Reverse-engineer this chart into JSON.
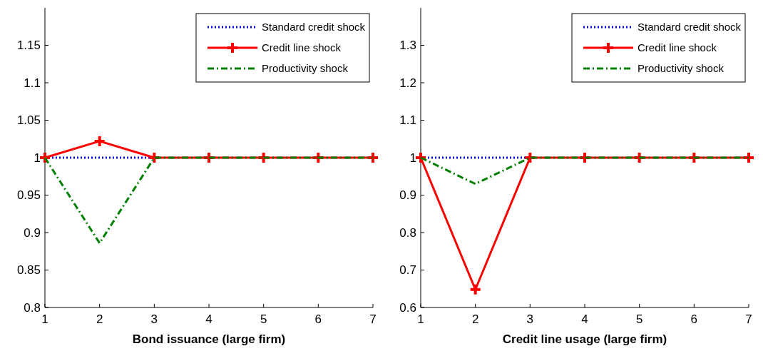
{
  "chart_data": [
    {
      "type": "line",
      "xlabel": "Bond issuance (large firm)",
      "x": [
        1,
        2,
        3,
        4,
        5,
        6,
        7
      ],
      "xlim": [
        1,
        7
      ],
      "xticks": [
        1,
        2,
        3,
        4,
        5,
        6,
        7
      ],
      "ylim": [
        0.8,
        1.2
      ],
      "yticks": [
        0.8,
        0.85,
        0.9,
        0.95,
        1,
        1.05,
        1.1,
        1.15
      ],
      "legend": "top right",
      "grid": false,
      "series": [
        {
          "name": "Standard credit shock",
          "color": "#0000ff",
          "line_style": "dotted",
          "marker": "none",
          "values": [
            1,
            1,
            1,
            null,
            null,
            null,
            null
          ]
        },
        {
          "name": "Credit line shock",
          "color": "#ff0000",
          "line_style": "solid",
          "marker": "cross",
          "values": [
            1,
            1.022,
            1,
            1,
            1,
            1,
            1
          ]
        },
        {
          "name": "Productivity shock",
          "color": "#008000",
          "line_style": "dashed",
          "marker": "none",
          "values": [
            1,
            0.886,
            1,
            1,
            1,
            1,
            1
          ]
        }
      ]
    },
    {
      "type": "line",
      "xlabel": "Credit line usage (large firm)",
      "x": [
        1,
        2,
        3,
        4,
        5,
        6,
        7
      ],
      "xlim": [
        1,
        7
      ],
      "xticks": [
        1,
        2,
        3,
        4,
        5,
        6,
        7
      ],
      "ylim": [
        0.6,
        1.4
      ],
      "yticks": [
        0.6,
        0.7,
        0.8,
        0.9,
        1,
        1.1,
        1.2,
        1.3
      ],
      "legend": "top right",
      "grid": false,
      "series": [
        {
          "name": "Standard credit shock",
          "color": "#0000ff",
          "line_style": "dotted",
          "marker": "none",
          "values": [
            1,
            1,
            1,
            null,
            null,
            null,
            null
          ]
        },
        {
          "name": "Credit line shock",
          "color": "#ff0000",
          "line_style": "solid",
          "marker": "cross",
          "values": [
            1,
            0.648,
            1,
            1,
            1,
            1,
            1
          ]
        },
        {
          "name": "Productivity shock",
          "color": "#008000",
          "line_style": "dashed",
          "marker": "none",
          "values": [
            1,
            0.93,
            1,
            1,
            1,
            1,
            1
          ]
        }
      ]
    }
  ]
}
